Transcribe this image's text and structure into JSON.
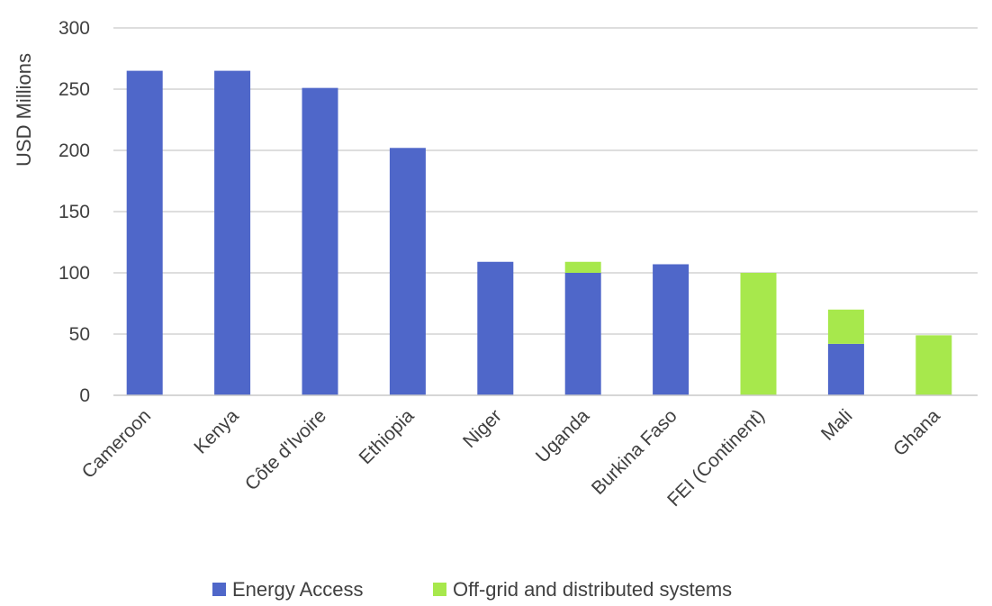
{
  "chart_data": {
    "type": "bar",
    "stacked": true,
    "categories": [
      "Cameroon",
      "Kenya",
      "Côte d'Ivoire",
      "Ethiopia",
      "Niger",
      "Uganda",
      "Burkina Faso",
      "FEI (Continent)",
      "Mali",
      "Ghana"
    ],
    "series": [
      {
        "name": "Energy Access",
        "color": "#4F67C9",
        "values": [
          265,
          265,
          251,
          202,
          109,
          100,
          107,
          0,
          42,
          0
        ]
      },
      {
        "name": "Off-grid and distributed systems",
        "color": "#A7E84C",
        "values": [
          0,
          0,
          0,
          0,
          0,
          9,
          0,
          100,
          28,
          49
        ]
      }
    ],
    "title": "",
    "xlabel": "",
    "ylabel": "USD Millions",
    "ylim": [
      0,
      300
    ],
    "yticks": [
      0,
      50,
      100,
      150,
      200,
      250,
      300
    ],
    "grid": true,
    "legend_position": "bottom"
  }
}
